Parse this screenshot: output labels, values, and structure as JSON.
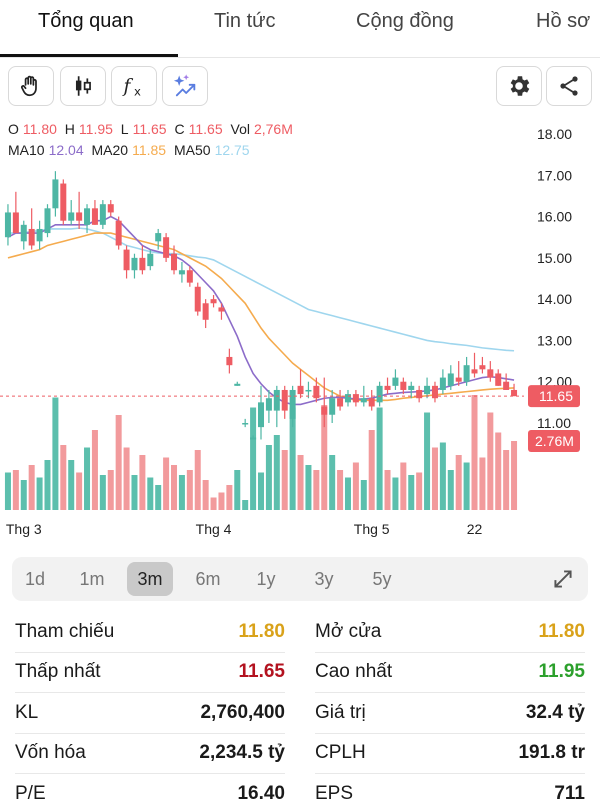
{
  "tabs": [
    {
      "label": "Tổng quan",
      "active": true
    },
    {
      "label": "Tin tức",
      "active": false
    },
    {
      "label": "Cộng đồng",
      "active": false
    },
    {
      "label": "Hồ sơ",
      "active": false
    }
  ],
  "toolbar": {
    "icons": [
      "hand-icon",
      "candlestick-icon",
      "function-icon",
      "ai-sparkle-icon",
      "gear-icon",
      "share-icon"
    ]
  },
  "ohlc": {
    "o_label": "O",
    "o": "11.80",
    "h_label": "H",
    "h": "11.95",
    "l_label": "L",
    "l": "11.65",
    "c_label": "C",
    "c": "11.65",
    "vol_label": "Vol",
    "vol": "2,76M"
  },
  "ma": {
    "ma10_label": "MA10",
    "ma10": "12.04",
    "ma20_label": "MA20",
    "ma20": "11.85",
    "ma50_label": "MA50",
    "ma50": "12.75"
  },
  "colors": {
    "up": "#4db6a4",
    "down": "#ee5c63",
    "vol_up": "#5cbfad",
    "vol_down": "#f29a9c",
    "ma10": "#8c6cc9",
    "ma20": "#f5ab4e",
    "ma50": "#9fd6ee",
    "ref_line": "#ee5c63",
    "yellow": "#d9a21a",
    "red": "#b3121f",
    "green": "#2ca02c"
  },
  "chart_data": {
    "type": "candlestick",
    "y_ticks": [
      "18.00",
      "17.00",
      "16.00",
      "15.00",
      "14.00",
      "13.00",
      "12.00",
      "11.00"
    ],
    "ylim": [
      10.4,
      18.5
    ],
    "x_labels": [
      {
        "label": "Thg 3",
        "index": 2
      },
      {
        "label": "Thg 4",
        "index": 26
      },
      {
        "label": "Thg 5",
        "index": 46
      },
      {
        "label": "22",
        "index": 59
      }
    ],
    "current_price_label": "11.65",
    "current_price": 11.65,
    "current_volume_label": "2.76M",
    "current_volume": 2.76,
    "volume_max": 5.0,
    "candles": [
      {
        "o": 15.5,
        "h": 16.3,
        "l": 15.3,
        "c": 16.1,
        "v": 1.5
      },
      {
        "o": 16.1,
        "h": 16.6,
        "l": 15.6,
        "c": 15.6,
        "v": 1.6
      },
      {
        "o": 15.4,
        "h": 15.9,
        "l": 15.2,
        "c": 15.8,
        "v": 1.2
      },
      {
        "o": 15.7,
        "h": 16.2,
        "l": 15.2,
        "c": 15.3,
        "v": 1.8
      },
      {
        "o": 15.4,
        "h": 15.9,
        "l": 15.2,
        "c": 15.7,
        "v": 1.3
      },
      {
        "o": 15.6,
        "h": 16.3,
        "l": 15.5,
        "c": 16.2,
        "v": 2.0
      },
      {
        "o": 16.2,
        "h": 17.1,
        "l": 16.0,
        "c": 16.9,
        "v": 4.5
      },
      {
        "o": 16.8,
        "h": 16.9,
        "l": 15.8,
        "c": 15.9,
        "v": 2.6
      },
      {
        "o": 15.9,
        "h": 16.4,
        "l": 15.8,
        "c": 16.1,
        "v": 2.0
      },
      {
        "o": 16.1,
        "h": 16.6,
        "l": 15.7,
        "c": 15.9,
        "v": 1.5
      },
      {
        "o": 15.8,
        "h": 16.3,
        "l": 15.6,
        "c": 16.2,
        "v": 2.5
      },
      {
        "o": 16.2,
        "h": 16.4,
        "l": 15.8,
        "c": 15.8,
        "v": 3.2
      },
      {
        "o": 15.8,
        "h": 16.4,
        "l": 15.7,
        "c": 16.3,
        "v": 1.4
      },
      {
        "o": 16.3,
        "h": 16.4,
        "l": 16.0,
        "c": 16.1,
        "v": 1.6
      },
      {
        "o": 15.9,
        "h": 16.0,
        "l": 15.2,
        "c": 15.3,
        "v": 3.8
      },
      {
        "o": 15.2,
        "h": 15.3,
        "l": 14.5,
        "c": 14.7,
        "v": 2.5
      },
      {
        "o": 14.7,
        "h": 15.1,
        "l": 14.5,
        "c": 15.0,
        "v": 1.4
      },
      {
        "o": 15.0,
        "h": 15.3,
        "l": 14.6,
        "c": 14.7,
        "v": 2.2
      },
      {
        "o": 14.8,
        "h": 15.2,
        "l": 14.7,
        "c": 15.1,
        "v": 1.3
      },
      {
        "o": 15.4,
        "h": 15.7,
        "l": 15.2,
        "c": 15.6,
        "v": 1.0
      },
      {
        "o": 15.5,
        "h": 15.6,
        "l": 14.9,
        "c": 15.0,
        "v": 2.1
      },
      {
        "o": 15.1,
        "h": 15.3,
        "l": 14.6,
        "c": 14.7,
        "v": 1.8
      },
      {
        "o": 14.6,
        "h": 14.9,
        "l": 14.4,
        "c": 14.7,
        "v": 1.4
      },
      {
        "o": 14.7,
        "h": 14.8,
        "l": 14.3,
        "c": 14.4,
        "v": 1.6
      },
      {
        "o": 14.3,
        "h": 14.4,
        "l": 13.6,
        "c": 13.7,
        "v": 2.4
      },
      {
        "o": 13.9,
        "h": 14.0,
        "l": 13.3,
        "c": 13.5,
        "v": 1.2
      },
      {
        "o": 14.0,
        "h": 14.1,
        "l": 13.8,
        "c": 13.9,
        "v": 0.5
      },
      {
        "o": 13.8,
        "h": 13.9,
        "l": 13.5,
        "c": 13.7,
        "v": 0.7
      },
      {
        "o": 12.6,
        "h": 12.8,
        "l": 12.2,
        "c": 12.4,
        "v": 1.0
      },
      {
        "o": 11.9,
        "h": 12.0,
        "l": 11.9,
        "c": 11.95,
        "v": 1.6
      },
      {
        "o": 11.0,
        "h": 11.1,
        "l": 10.9,
        "c": 11.0,
        "v": 0.4
      },
      {
        "o": 10.6,
        "h": 10.7,
        "l": 10.6,
        "c": 10.65,
        "v": 4.1
      },
      {
        "o": 10.9,
        "h": 11.9,
        "l": 10.6,
        "c": 11.5,
        "v": 1.5
      },
      {
        "o": 11.3,
        "h": 11.8,
        "l": 11.0,
        "c": 11.6,
        "v": 2.6
      },
      {
        "o": 11.3,
        "h": 11.9,
        "l": 10.9,
        "c": 11.8,
        "v": 3.0
      },
      {
        "o": 11.8,
        "h": 11.9,
        "l": 11.1,
        "c": 11.3,
        "v": 2.4
      },
      {
        "o": 11.1,
        "h": 11.9,
        "l": 10.9,
        "c": 11.8,
        "v": 4.1
      },
      {
        "o": 11.9,
        "h": 12.3,
        "l": 11.6,
        "c": 11.7,
        "v": 2.2
      },
      {
        "o": 11.8,
        "h": 12.0,
        "l": 11.6,
        "c": 11.8,
        "v": 1.8
      },
      {
        "o": 11.9,
        "h": 12.1,
        "l": 11.5,
        "c": 11.6,
        "v": 1.6
      },
      {
        "o": 11.4,
        "h": 12.1,
        "l": 10.9,
        "c": 11.2,
        "v": 4.2
      },
      {
        "o": 11.2,
        "h": 11.8,
        "l": 11.0,
        "c": 11.6,
        "v": 2.2
      },
      {
        "o": 11.6,
        "h": 11.8,
        "l": 11.3,
        "c": 11.4,
        "v": 1.6
      },
      {
        "o": 11.5,
        "h": 11.8,
        "l": 11.4,
        "c": 11.7,
        "v": 1.3
      },
      {
        "o": 11.7,
        "h": 11.8,
        "l": 11.4,
        "c": 11.5,
        "v": 1.9
      },
      {
        "o": 11.5,
        "h": 11.9,
        "l": 11.4,
        "c": 11.6,
        "v": 1.2
      },
      {
        "o": 11.6,
        "h": 11.8,
        "l": 11.3,
        "c": 11.4,
        "v": 3.2
      },
      {
        "o": 11.5,
        "h": 12.0,
        "l": 11.4,
        "c": 11.9,
        "v": 4.1
      },
      {
        "o": 11.9,
        "h": 12.1,
        "l": 11.7,
        "c": 11.8,
        "v": 1.6
      },
      {
        "o": 11.9,
        "h": 12.3,
        "l": 11.8,
        "c": 12.1,
        "v": 1.3
      },
      {
        "o": 12.0,
        "h": 12.1,
        "l": 11.7,
        "c": 11.8,
        "v": 1.9
      },
      {
        "o": 11.8,
        "h": 12.0,
        "l": 11.6,
        "c": 11.9,
        "v": 1.4
      },
      {
        "o": 11.8,
        "h": 11.9,
        "l": 11.5,
        "c": 11.6,
        "v": 1.5
      },
      {
        "o": 11.7,
        "h": 12.1,
        "l": 11.6,
        "c": 11.9,
        "v": 3.9
      },
      {
        "o": 11.9,
        "h": 12.0,
        "l": 11.5,
        "c": 11.6,
        "v": 2.5
      },
      {
        "o": 11.8,
        "h": 12.3,
        "l": 11.7,
        "c": 12.1,
        "v": 2.7
      },
      {
        "o": 11.9,
        "h": 12.4,
        "l": 11.8,
        "c": 12.2,
        "v": 1.6
      },
      {
        "o": 12.1,
        "h": 12.5,
        "l": 11.9,
        "c": 12.0,
        "v": 2.2
      },
      {
        "o": 12.0,
        "h": 12.6,
        "l": 11.9,
        "c": 12.4,
        "v": 1.9
      },
      {
        "o": 12.3,
        "h": 12.7,
        "l": 12.1,
        "c": 12.2,
        "v": 4.6
      },
      {
        "o": 12.4,
        "h": 12.6,
        "l": 12.2,
        "c": 12.3,
        "v": 2.1
      },
      {
        "o": 12.3,
        "h": 12.5,
        "l": 12.0,
        "c": 12.1,
        "v": 3.9
      },
      {
        "o": 12.2,
        "h": 12.3,
        "l": 11.9,
        "c": 11.9,
        "v": 3.1
      },
      {
        "o": 12.0,
        "h": 12.2,
        "l": 11.8,
        "c": 11.8,
        "v": 2.4
      },
      {
        "o": 11.8,
        "h": 11.95,
        "l": 11.65,
        "c": 11.65,
        "v": 2.76
      }
    ],
    "ma10": [
      15.5,
      15.6,
      15.6,
      15.6,
      15.6,
      15.7,
      15.8,
      15.8,
      15.8,
      15.8,
      15.8,
      15.9,
      15.9,
      16.0,
      15.9,
      15.7,
      15.5,
      15.3,
      15.2,
      15.15,
      15.1,
      15.05,
      14.95,
      14.8,
      14.6,
      14.4,
      14.2,
      13.9,
      13.5,
      13.1,
      12.6,
      12.2,
      11.95,
      11.75,
      11.6,
      11.5,
      11.45,
      11.45,
      11.5,
      11.55,
      11.6,
      11.62,
      11.62,
      11.6,
      11.58,
      11.58,
      11.6,
      11.65,
      11.7,
      11.72,
      11.74,
      11.75,
      11.76,
      11.78,
      11.8,
      11.85,
      11.9,
      11.95,
      12.0,
      12.05,
      12.1,
      12.12,
      12.1,
      12.07,
      12.04
    ],
    "ma20": [
      15.0,
      15.05,
      15.1,
      15.15,
      15.2,
      15.3,
      15.35,
      15.4,
      15.45,
      15.5,
      15.55,
      15.6,
      15.6,
      15.6,
      15.55,
      15.5,
      15.45,
      15.4,
      15.35,
      15.3,
      15.25,
      15.2,
      15.1,
      15.0,
      14.9,
      14.8,
      14.65,
      14.5,
      14.3,
      14.1,
      13.9,
      13.6,
      13.3,
      13.05,
      12.85,
      12.65,
      12.45,
      12.3,
      12.15,
      12.0,
      11.85,
      11.75,
      11.65,
      11.6,
      11.55,
      11.55,
      11.55,
      11.55,
      11.55,
      11.57,
      11.6,
      11.62,
      11.64,
      11.66,
      11.68,
      11.7,
      11.72,
      11.74,
      11.76,
      11.78,
      11.8,
      11.82,
      11.83,
      11.84,
      11.85
    ],
    "ma50": [
      15.6,
      15.6,
      15.6,
      15.65,
      15.65,
      15.7,
      15.7,
      15.7,
      15.7,
      15.72,
      15.7,
      15.65,
      15.6,
      15.5,
      15.4,
      15.3,
      15.25,
      15.2,
      15.15,
      15.12,
      15.1,
      15.1,
      15.08,
      15.05,
      15.02,
      15.0,
      14.95,
      14.85,
      14.75,
      14.65,
      14.55,
      14.45,
      14.35,
      14.25,
      14.15,
      14.05,
      13.95,
      13.85,
      13.75,
      13.7,
      13.65,
      13.6,
      13.55,
      13.5,
      13.45,
      13.4,
      13.35,
      13.3,
      13.25,
      13.2,
      13.15,
      13.1,
      13.05,
      13.0,
      12.97,
      12.95,
      12.92,
      12.9,
      12.88,
      12.85,
      12.82,
      12.8,
      12.78,
      12.76,
      12.75
    ]
  },
  "ranges": [
    {
      "label": "1d",
      "active": false
    },
    {
      "label": "1m",
      "active": false
    },
    {
      "label": "3m",
      "active": true
    },
    {
      "label": "6m",
      "active": false
    },
    {
      "label": "1y",
      "active": false
    },
    {
      "label": "3y",
      "active": false
    },
    {
      "label": "5y",
      "active": false
    }
  ],
  "stats": {
    "left": [
      {
        "label": "Tham chiếu",
        "value": "11.80",
        "color": "yellow"
      },
      {
        "label": "Thấp nhất",
        "value": "11.65",
        "color": "red"
      },
      {
        "label": "KL",
        "value": "2,760,400",
        "color": "black"
      },
      {
        "label": "Vốn hóa",
        "value": "2,234.5 tỷ",
        "color": "black"
      },
      {
        "label": "P/E",
        "value": "16.40",
        "color": "black"
      }
    ],
    "right": [
      {
        "label": "Mở cửa",
        "value": "11.80",
        "color": "yellow"
      },
      {
        "label": "Cao nhất",
        "value": "11.95",
        "color": "green"
      },
      {
        "label": "Giá trị",
        "value": "32.4 tỷ",
        "color": "black"
      },
      {
        "label": "CPLH",
        "value": "191.8 tr",
        "color": "black"
      },
      {
        "label": "EPS",
        "value": "711",
        "color": "black"
      }
    ]
  }
}
